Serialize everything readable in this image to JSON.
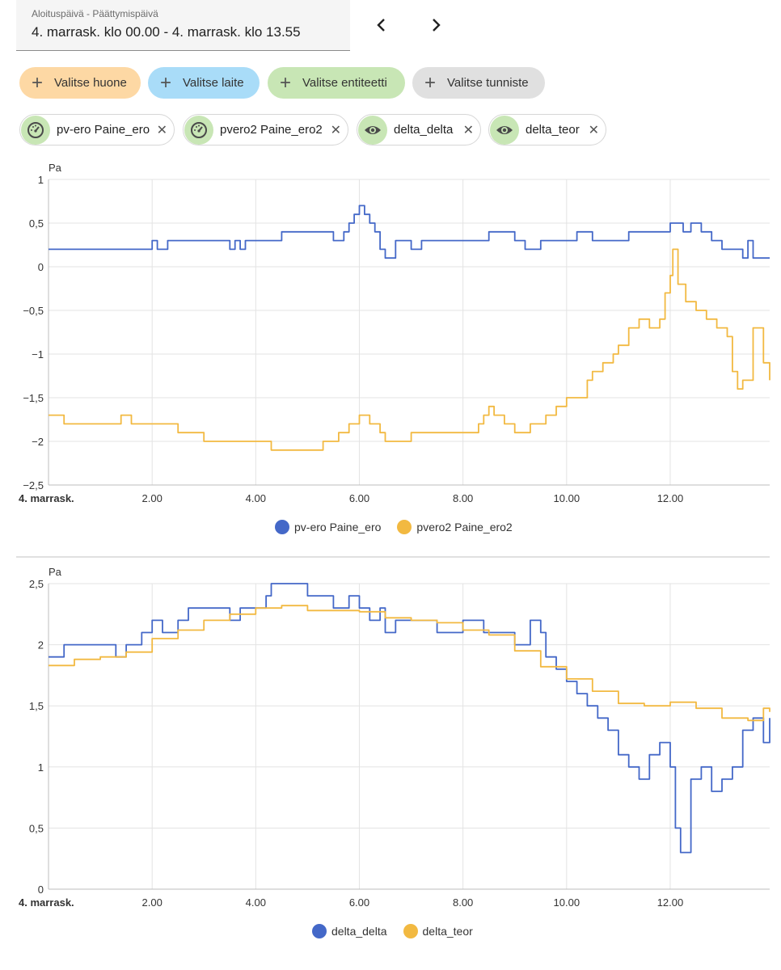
{
  "date_picker": {
    "label": "Aloituspäivä - Päättymispäivä",
    "value": "4. marrask. klo 00.00 - 4. marrask. klo 13.55"
  },
  "nav": {
    "prev": "‹",
    "next": "›"
  },
  "filter_chips": [
    {
      "label": "Valitse huone",
      "color": "#fdd8a4"
    },
    {
      "label": "Valitse laite",
      "color": "#a9dcf8"
    },
    {
      "label": "Valitse entiteetti",
      "color": "#c8e6b5"
    },
    {
      "label": "Valitse tunniste",
      "color": "#e0e0e0"
    }
  ],
  "selected_entities": [
    {
      "label": "pv-ero Paine_ero",
      "icon": "gauge-icon"
    },
    {
      "label": "pvero2 Paine_ero2",
      "icon": "gauge-icon"
    },
    {
      "label": "delta_delta",
      "icon": "eye-icon"
    },
    {
      "label": "delta_teor",
      "icon": "eye-icon"
    }
  ],
  "chart_data": [
    {
      "type": "line",
      "ylabel": "Pa",
      "ylim": [
        -2.5,
        1
      ],
      "yticks": [
        1,
        0.5,
        0,
        -0.5,
        -1,
        -1.5,
        -2,
        -2.5
      ],
      "ytick_labels": [
        "1",
        "0,5",
        "0",
        "−0,5",
        "−1",
        "−1,5",
        "−2",
        "−2,5"
      ],
      "xlim": [
        0,
        13.92
      ],
      "xticks": [
        0,
        2,
        4,
        6,
        8,
        10,
        12
      ],
      "xtick_labels": [
        "4. marrask.",
        "2.00",
        "4.00",
        "6.00",
        "8.00",
        "10.00",
        "12.00"
      ],
      "grid": true,
      "legend": "bottom-center",
      "series": [
        {
          "name": "pv-ero Paine_ero",
          "color": "#4468c8",
          "x": [
            0,
            1.95,
            2.0,
            2.1,
            2.3,
            2.5,
            3.5,
            3.6,
            3.7,
            3.8,
            4.2,
            4.5,
            5.0,
            5.5,
            5.7,
            5.8,
            5.9,
            6.0,
            6.1,
            6.2,
            6.3,
            6.4,
            6.5,
            6.7,
            7.0,
            7.2,
            7.5,
            8.0,
            8.5,
            9.0,
            9.2,
            9.5,
            10.0,
            10.2,
            10.5,
            11.0,
            11.2,
            12.0,
            12.25,
            12.4,
            12.6,
            12.8,
            13.0,
            13.2,
            13.4,
            13.5,
            13.6,
            13.92
          ],
          "y": [
            0.2,
            0.2,
            0.3,
            0.2,
            0.3,
            0.3,
            0.2,
            0.3,
            0.2,
            0.3,
            0.3,
            0.4,
            0.4,
            0.3,
            0.4,
            0.5,
            0.6,
            0.7,
            0.6,
            0.5,
            0.4,
            0.2,
            0.1,
            0.3,
            0.2,
            0.3,
            0.3,
            0.3,
            0.4,
            0.3,
            0.2,
            0.3,
            0.3,
            0.4,
            0.3,
            0.3,
            0.4,
            0.5,
            0.4,
            0.5,
            0.4,
            0.3,
            0.2,
            0.2,
            0.1,
            0.3,
            0.1,
            0.1
          ]
        },
        {
          "name": "pvero2 Paine_ero2",
          "color": "#f2b941",
          "x": [
            0,
            0.3,
            1.0,
            1.4,
            1.6,
            1.8,
            2.5,
            3.0,
            4.0,
            4.3,
            5.0,
            5.3,
            5.6,
            5.8,
            6.0,
            6.2,
            6.4,
            6.5,
            6.7,
            7.0,
            8.0,
            8.3,
            8.4,
            8.5,
            8.6,
            8.8,
            9.0,
            9.3,
            9.6,
            9.8,
            10.0,
            10.2,
            10.4,
            10.5,
            10.7,
            10.9,
            11.0,
            11.2,
            11.4,
            11.6,
            11.8,
            11.9,
            12.0,
            12.05,
            12.15,
            12.3,
            12.5,
            12.7,
            12.9,
            13.1,
            13.2,
            13.3,
            13.4,
            13.6,
            13.8,
            13.92
          ],
          "y": [
            -1.7,
            -1.8,
            -1.8,
            -1.7,
            -1.8,
            -1.8,
            -1.9,
            -2.0,
            -2.0,
            -2.1,
            -2.1,
            -2.0,
            -1.9,
            -1.8,
            -1.7,
            -1.8,
            -1.9,
            -2.0,
            -2.0,
            -1.9,
            -1.9,
            -1.8,
            -1.7,
            -1.6,
            -1.7,
            -1.8,
            -1.9,
            -1.8,
            -1.7,
            -1.6,
            -1.5,
            -1.5,
            -1.3,
            -1.2,
            -1.1,
            -1.0,
            -0.9,
            -0.7,
            -0.6,
            -0.7,
            -0.6,
            -0.3,
            -0.1,
            0.2,
            -0.2,
            -0.4,
            -0.5,
            -0.6,
            -0.7,
            -0.8,
            -1.2,
            -1.4,
            -1.3,
            -0.7,
            -1.1,
            -1.3
          ]
        }
      ]
    },
    {
      "type": "line",
      "ylabel": "Pa",
      "ylim": [
        0,
        2.5
      ],
      "yticks": [
        2.5,
        2,
        1.5,
        1,
        0.5,
        0
      ],
      "ytick_labels": [
        "2,5",
        "2",
        "1,5",
        "1",
        "0,5",
        "0"
      ],
      "xlim": [
        0,
        13.92
      ],
      "xticks": [
        0,
        2,
        4,
        6,
        8,
        10,
        12
      ],
      "xtick_labels": [
        "4. marrask.",
        "2.00",
        "4.00",
        "6.00",
        "8.00",
        "10.00",
        "12.00"
      ],
      "grid": true,
      "legend": "bottom-center",
      "series": [
        {
          "name": "delta_delta",
          "color": "#4468c8",
          "x": [
            0,
            0.3,
            1.0,
            1.3,
            1.5,
            1.8,
            2.0,
            2.2,
            2.5,
            2.7,
            3.0,
            3.5,
            3.7,
            4.0,
            4.2,
            4.3,
            4.6,
            5.0,
            5.5,
            5.8,
            6.0,
            6.2,
            6.4,
            6.5,
            6.7,
            7.0,
            7.5,
            8.0,
            8.4,
            8.7,
            9.0,
            9.3,
            9.5,
            9.6,
            9.8,
            10.0,
            10.2,
            10.4,
            10.6,
            10.8,
            11.0,
            11.2,
            11.4,
            11.6,
            11.8,
            12.0,
            12.1,
            12.2,
            12.4,
            12.6,
            12.8,
            13.0,
            13.2,
            13.4,
            13.6,
            13.8,
            13.92
          ],
          "y": [
            1.9,
            2.0,
            2.0,
            1.9,
            2.0,
            2.1,
            2.2,
            2.1,
            2.2,
            2.3,
            2.3,
            2.2,
            2.3,
            2.3,
            2.4,
            2.5,
            2.5,
            2.4,
            2.3,
            2.4,
            2.3,
            2.2,
            2.3,
            2.1,
            2.2,
            2.2,
            2.1,
            2.2,
            2.1,
            2.1,
            2.0,
            2.2,
            2.1,
            1.9,
            1.8,
            1.7,
            1.6,
            1.5,
            1.4,
            1.3,
            1.1,
            1.0,
            0.9,
            1.1,
            1.2,
            1.0,
            0.5,
            0.3,
            0.9,
            1.0,
            0.8,
            0.9,
            1.0,
            1.3,
            1.4,
            1.2,
            1.4
          ]
        },
        {
          "name": "delta_teor",
          "color": "#f2b941",
          "x": [
            0,
            0.5,
            1.0,
            1.5,
            2.0,
            2.5,
            3.0,
            3.5,
            4.0,
            4.5,
            5.0,
            5.5,
            6.0,
            6.5,
            7.0,
            7.5,
            8.0,
            8.5,
            9.0,
            9.5,
            10.0,
            10.5,
            11.0,
            11.5,
            12.0,
            12.5,
            13.0,
            13.5,
            13.8,
            13.92
          ],
          "y": [
            1.83,
            1.88,
            1.9,
            1.94,
            2.05,
            2.12,
            2.2,
            2.25,
            2.3,
            2.32,
            2.28,
            2.28,
            2.27,
            2.22,
            2.2,
            2.18,
            2.12,
            2.08,
            1.95,
            1.82,
            1.72,
            1.62,
            1.52,
            1.5,
            1.53,
            1.48,
            1.4,
            1.38,
            1.48,
            1.45
          ]
        }
      ]
    }
  ]
}
